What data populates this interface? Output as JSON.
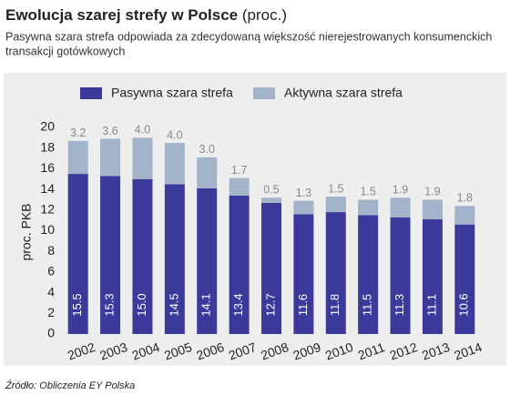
{
  "chart_data": {
    "type": "stacked_bar",
    "title": "Ewolucja szarej strefy w Polsce",
    "title_unit": "(proc.)",
    "subtitle": [
      "Pasywna szara strefa odpowiada za zdecydowaną większość nierejestrowanych konsumenckich",
      "transakcji gotówkowych"
    ],
    "y_label": "proc. PKB",
    "source": "Źródło: Obliczenia EY Polska",
    "categories": [
      "2002",
      "2003",
      "2004",
      "2005",
      "2006",
      "2007",
      "2008",
      "2009",
      "2010",
      "2011",
      "2012",
      "2013",
      "2014"
    ],
    "series": [
      {
        "name": "Pasywna szara strefa",
        "color": "#3b3a9a",
        "values": [
          15.5,
          15.3,
          15.0,
          14.5,
          14.1,
          13.4,
          12.7,
          11.6,
          11.8,
          11.5,
          11.3,
          11.1,
          10.6
        ],
        "value_labels": [
          "15.5",
          "15.3",
          "15.0",
          "14.5",
          "14.1",
          "13.4",
          "12.7",
          "11.6",
          "11.8",
          "11.5",
          "11.3",
          "11.1",
          "10.6"
        ]
      },
      {
        "name": "Aktywna szara strefa",
        "color": "#a3b3c9",
        "values": [
          3.2,
          3.6,
          4.0,
          4.0,
          3.0,
          1.7,
          0.5,
          1.3,
          1.5,
          1.5,
          1.9,
          1.9,
          1.8
        ],
        "value_labels": [
          "3.2",
          "3.6",
          "4.0",
          "4.0",
          "3.0",
          "1.7",
          "0.5",
          "1.3",
          "1.5",
          "1.5",
          "1.9",
          "1.9",
          "1.8"
        ]
      }
    ],
    "ylim": [
      0,
      20
    ],
    "yticks": [
      0,
      2,
      4,
      6,
      8,
      10,
      12,
      14,
      16,
      18,
      20
    ],
    "grid": false
  }
}
